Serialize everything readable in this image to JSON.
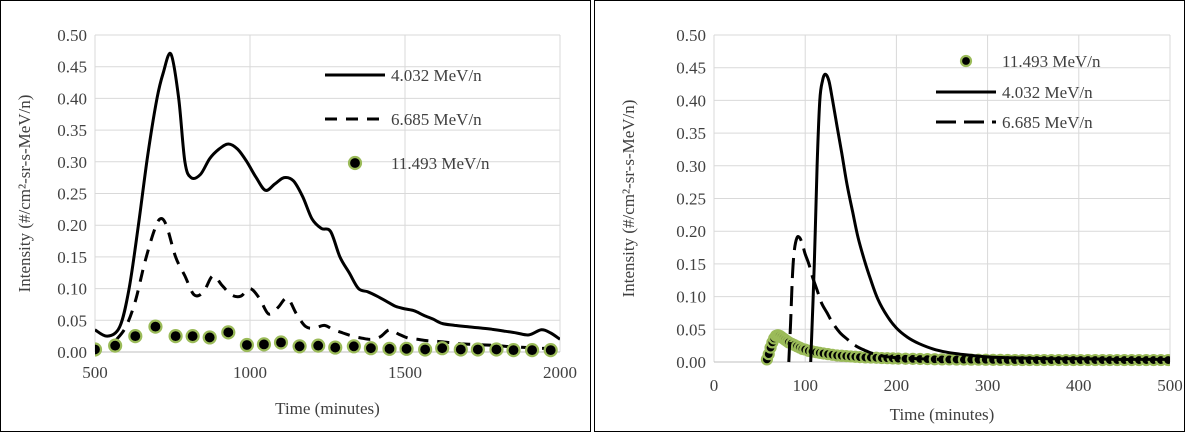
{
  "chart_data": [
    {
      "type": "line",
      "title": "",
      "xlabel": "Time (minutes)",
      "ylabel": "Intensity (#/cm²-sr-s-MeV/n)",
      "xlim": [
        500,
        2000
      ],
      "ylim": [
        0,
        0.5
      ],
      "x_ticks": [
        "500",
        "1000",
        "1500",
        "2000"
      ],
      "y_ticks": [
        "0.00",
        "0.05",
        "0.10",
        "0.15",
        "0.20",
        "0.25",
        "0.30",
        "0.35",
        "0.40",
        "0.45",
        "0.50"
      ],
      "grid": true,
      "legend_position": "top-right",
      "series": [
        {
          "name": "4.032 MeV/n",
          "style": "solid",
          "x": [
            500,
            540,
            580,
            610,
            640,
            670,
            700,
            720,
            745,
            770,
            790,
            810,
            840,
            870,
            900,
            930,
            960,
            990,
            1020,
            1050,
            1080,
            1110,
            1140,
            1170,
            1200,
            1230,
            1260,
            1290,
            1320,
            1350,
            1380,
            1410,
            1440,
            1470,
            1500,
            1530,
            1560,
            1590,
            1620,
            1660,
            1700,
            1740,
            1780,
            1820,
            1860,
            1900,
            1940,
            1970,
            2000
          ],
          "y": [
            0.035,
            0.025,
            0.04,
            0.1,
            0.2,
            0.31,
            0.4,
            0.44,
            0.47,
            0.4,
            0.3,
            0.275,
            0.28,
            0.305,
            0.32,
            0.328,
            0.32,
            0.3,
            0.275,
            0.255,
            0.265,
            0.275,
            0.27,
            0.245,
            0.21,
            0.195,
            0.19,
            0.15,
            0.125,
            0.1,
            0.095,
            0.088,
            0.08,
            0.072,
            0.068,
            0.065,
            0.058,
            0.052,
            0.045,
            0.042,
            0.04,
            0.038,
            0.036,
            0.033,
            0.03,
            0.027,
            0.035,
            0.03,
            0.02
          ]
        },
        {
          "name": "6.685 MeV/n",
          "style": "dashed",
          "x": [
            570,
            600,
            630,
            660,
            690,
            710,
            730,
            760,
            790,
            820,
            850,
            880,
            910,
            940,
            970,
            1000,
            1030,
            1060,
            1090,
            1120,
            1150,
            1180,
            1210,
            1240,
            1270,
            1300,
            1330,
            1360,
            1390,
            1420,
            1450,
            1480,
            1510,
            1540,
            1570,
            1600,
            1640,
            1680,
            1720,
            1760,
            1800,
            1850,
            1900,
            1950,
            2000
          ],
          "y": [
            0.02,
            0.04,
            0.08,
            0.14,
            0.19,
            0.21,
            0.2,
            0.15,
            0.12,
            0.09,
            0.095,
            0.12,
            0.105,
            0.09,
            0.088,
            0.1,
            0.085,
            0.06,
            0.07,
            0.085,
            0.06,
            0.04,
            0.038,
            0.042,
            0.035,
            0.03,
            0.025,
            0.022,
            0.02,
            0.024,
            0.035,
            0.028,
            0.022,
            0.02,
            0.018,
            0.017,
            0.015,
            0.013,
            0.012,
            0.011,
            0.01,
            0.008,
            0.007,
            0.006,
            0.012
          ]
        },
        {
          "name": "11.493 MeV/n",
          "style": "markers",
          "x": [
            500,
            565,
            630,
            695,
            760,
            815,
            870,
            930,
            990,
            1045,
            1100,
            1160,
            1220,
            1275,
            1335,
            1390,
            1450,
            1505,
            1565,
            1620,
            1680,
            1735,
            1795,
            1850,
            1910,
            1970
          ],
          "y": [
            0.004,
            0.01,
            0.025,
            0.04,
            0.025,
            0.025,
            0.023,
            0.031,
            0.011,
            0.012,
            0.015,
            0.009,
            0.01,
            0.007,
            0.009,
            0.006,
            0.005,
            0.005,
            0.004,
            0.006,
            0.004,
            0.004,
            0.004,
            0.003,
            0.003,
            0.003
          ]
        }
      ]
    },
    {
      "type": "line",
      "title": "",
      "xlabel": "Time (minutes)",
      "ylabel": "Intensity (#/cm²-sr-s-MeV/n)",
      "xlim": [
        0,
        500
      ],
      "ylim": [
        0,
        0.5
      ],
      "x_ticks": [
        "0",
        "100",
        "200",
        "300",
        "400",
        "500"
      ],
      "y_ticks": [
        "0.00",
        "0.05",
        "0.10",
        "0.15",
        "0.20",
        "0.25",
        "0.30",
        "0.35",
        "0.40",
        "0.45",
        "0.50"
      ],
      "grid": true,
      "legend_position": "top-right",
      "series": [
        {
          "name": "11.493 MeV/n",
          "style": "markers",
          "x": [
            58,
            60,
            62,
            64,
            66,
            68,
            70,
            72,
            74,
            76,
            78,
            80,
            82,
            85,
            88,
            91,
            94,
            97,
            100,
            104,
            108,
            112,
            116,
            120,
            125,
            130,
            135,
            140,
            145,
            150,
            155,
            160,
            166,
            172,
            178,
            184,
            190,
            196,
            202,
            210,
            218,
            226,
            234,
            242,
            250,
            258,
            266,
            274,
            282,
            290,
            298,
            306,
            314,
            322,
            330,
            338,
            346,
            354,
            362,
            370,
            378,
            386,
            394,
            402,
            410,
            418,
            426,
            434,
            442,
            450,
            458,
            466,
            474,
            482,
            490,
            498
          ],
          "y": [
            0.004,
            0.012,
            0.022,
            0.03,
            0.036,
            0.04,
            0.041,
            0.04,
            0.038,
            0.036,
            0.034,
            0.032,
            0.03,
            0.028,
            0.026,
            0.024,
            0.022,
            0.02,
            0.019,
            0.017,
            0.016,
            0.015,
            0.014,
            0.013,
            0.012,
            0.011,
            0.01,
            0.0095,
            0.009,
            0.0085,
            0.008,
            0.0075,
            0.007,
            0.0068,
            0.0065,
            0.006,
            0.0058,
            0.0055,
            0.0052,
            0.005,
            0.0048,
            0.0046,
            0.0044,
            0.0042,
            0.004,
            0.0039,
            0.0038,
            0.0037,
            0.0036,
            0.0035,
            0.0034,
            0.0033,
            0.0032,
            0.0031,
            0.003,
            0.003,
            0.003,
            0.003,
            0.003,
            0.003,
            0.003,
            0.003,
            0.003,
            0.003,
            0.003,
            0.003,
            0.003,
            0.003,
            0.003,
            0.003,
            0.003,
            0.003,
            0.003,
            0.003,
            0.003,
            0.003
          ]
        },
        {
          "name": "4.032 MeV/n",
          "style": "solid",
          "x": [
            106,
            110,
            113,
            116,
            119,
            122,
            126,
            130,
            135,
            140,
            146,
            152,
            158,
            165,
            172,
            180,
            190,
            200,
            212,
            225,
            240,
            255,
            270,
            290,
            310,
            340,
            370,
            400,
            440,
            470,
            500
          ],
          "y": [
            0.0,
            0.15,
            0.3,
            0.4,
            0.43,
            0.44,
            0.43,
            0.4,
            0.36,
            0.32,
            0.27,
            0.23,
            0.19,
            0.155,
            0.125,
            0.095,
            0.07,
            0.052,
            0.038,
            0.028,
            0.02,
            0.015,
            0.012,
            0.009,
            0.007,
            0.006,
            0.005,
            0.005,
            0.004,
            0.004,
            0.004
          ]
        },
        {
          "name": "6.685 MeV/n",
          "style": "dashed",
          "x": [
            82,
            84,
            86,
            88,
            91,
            94,
            97,
            100,
            104,
            108,
            113,
            118,
            124,
            130,
            138,
            146,
            155,
            165,
            176,
            190,
            205,
            225,
            250
          ],
          "y": [
            0.0,
            0.06,
            0.13,
            0.17,
            0.19,
            0.19,
            0.18,
            0.165,
            0.15,
            0.13,
            0.11,
            0.09,
            0.075,
            0.06,
            0.045,
            0.035,
            0.025,
            0.018,
            0.012,
            0.008,
            0.006,
            0.005,
            0.004
          ]
        }
      ]
    }
  ]
}
